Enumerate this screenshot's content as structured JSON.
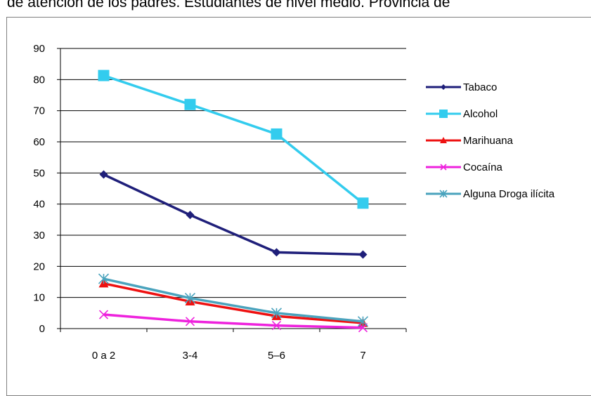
{
  "caption": "de atención de los padres. Estudiantes de nivel medio. Provincia de",
  "chart_data": {
    "type": "line",
    "title": "",
    "xlabel": "",
    "ylabel": "",
    "categories": [
      "0 a 2",
      "3-4",
      "5–6",
      "7"
    ],
    "ylim": [
      0,
      90
    ],
    "yticks": [
      0,
      10,
      20,
      30,
      40,
      50,
      60,
      70,
      80,
      90
    ],
    "grid": true,
    "legend": "right",
    "series": [
      {
        "name": "Tabaco",
        "color": "#1f1f7a",
        "marker": "diamond",
        "values": [
          49.5,
          36.5,
          24.5,
          23.8
        ]
      },
      {
        "name": "Alcohol",
        "color": "#33ccee",
        "marker": "square",
        "values": [
          81.3,
          72.0,
          62.5,
          40.3
        ]
      },
      {
        "name": "Marihuana",
        "color": "#ee1111",
        "marker": "triangle",
        "values": [
          14.5,
          8.7,
          4.0,
          1.8
        ]
      },
      {
        "name": "Cocaína",
        "color": "#ee22dd",
        "marker": "x",
        "values": [
          4.5,
          2.3,
          1.0,
          0.3
        ]
      },
      {
        "name": "Alguna Droga ilícita",
        "color": "#4aa3bd",
        "marker": "star",
        "values": [
          16.0,
          9.8,
          5.0,
          2.3
        ]
      }
    ]
  }
}
